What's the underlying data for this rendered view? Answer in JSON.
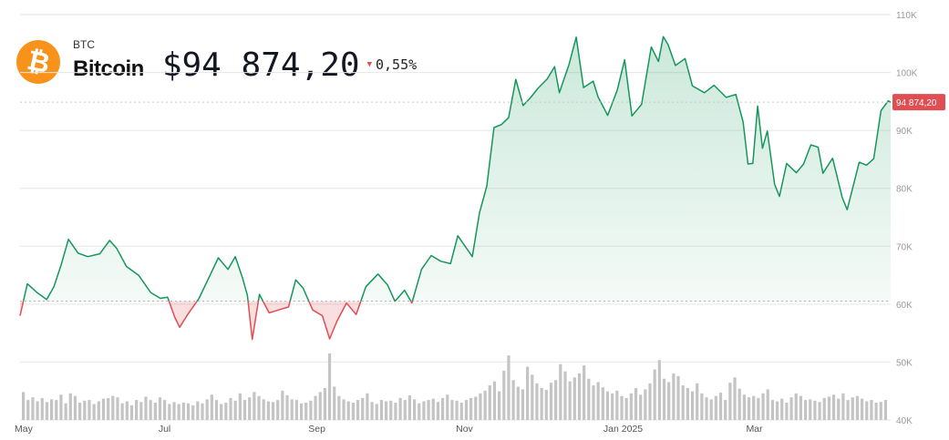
{
  "asset": {
    "ticker": "BTC",
    "name": "Bitcoin",
    "price_display": "$94 874,20",
    "change_display": "0,55%",
    "change_direction": "down",
    "icon": "bitcoin-icon",
    "icon_color": "#f7931a"
  },
  "colors": {
    "up_line": "#15965a",
    "up_fill": "#15965a",
    "down_line": "#e04d52",
    "down_fill": "#e04d52",
    "volume": "#c4c4c4",
    "grid": "#e6e6e6",
    "price_tag": "#e04d52"
  },
  "chart_data": {
    "type": "area",
    "title": "",
    "price_label": "94 874,20",
    "last_price": 94874.2,
    "baseline_price": 60500,
    "y_ticks": [
      "110K",
      "100K",
      "90K",
      "80K",
      "70K",
      "60K",
      "50K",
      "40K"
    ],
    "ylim": [
      40000,
      110000
    ],
    "x_tick_labels": [
      "May",
      "Jul",
      "Sep",
      "Nov",
      "Jan 2025",
      "Mar"
    ],
    "x_tick_dates": [
      "2024-05-01",
      "2024-07-01",
      "2024-09-01",
      "2024-11-01",
      "2025-01-01",
      "2025-03-01"
    ],
    "xlim": [
      "2024-05-01",
      "2025-04-26"
    ],
    "grid": true,
    "series": [
      {
        "price_points": [
          [
            "2024-05-01",
            58000
          ],
          [
            "2024-05-04",
            63500
          ],
          [
            "2024-05-08",
            62000
          ],
          [
            "2024-05-12",
            60800
          ],
          [
            "2024-05-15",
            63000
          ],
          [
            "2024-05-18",
            66800
          ],
          [
            "2024-05-21",
            71200
          ],
          [
            "2024-05-25",
            68800
          ],
          [
            "2024-05-29",
            68200
          ],
          [
            "2024-06-03",
            68700
          ],
          [
            "2024-06-07",
            71000
          ],
          [
            "2024-06-10",
            69600
          ],
          [
            "2024-06-14",
            66500
          ],
          [
            "2024-06-19",
            65000
          ],
          [
            "2024-06-24",
            62000
          ],
          [
            "2024-06-28",
            61000
          ],
          [
            "2024-07-01",
            61200
          ],
          [
            "2024-07-04",
            57700
          ],
          [
            "2024-07-06",
            56000
          ],
          [
            "2024-07-09",
            58000
          ],
          [
            "2024-07-14",
            61000
          ],
          [
            "2024-07-18",
            64500
          ],
          [
            "2024-07-22",
            68000
          ],
          [
            "2024-07-26",
            66000
          ],
          [
            "2024-07-29",
            68200
          ],
          [
            "2024-08-01",
            64500
          ],
          [
            "2024-08-03",
            61500
          ],
          [
            "2024-08-05",
            53900
          ],
          [
            "2024-08-08",
            61700
          ],
          [
            "2024-08-12",
            58500
          ],
          [
            "2024-08-16",
            59000
          ],
          [
            "2024-08-20",
            59500
          ],
          [
            "2024-08-23",
            64200
          ],
          [
            "2024-08-26",
            62800
          ],
          [
            "2024-08-30",
            59000
          ],
          [
            "2024-09-03",
            58000
          ],
          [
            "2024-09-06",
            54000
          ],
          [
            "2024-09-09",
            57000
          ],
          [
            "2024-09-13",
            60200
          ],
          [
            "2024-09-17",
            58200
          ],
          [
            "2024-09-21",
            63000
          ],
          [
            "2024-09-26",
            65200
          ],
          [
            "2024-09-30",
            63300
          ],
          [
            "2024-10-03",
            60500
          ],
          [
            "2024-10-07",
            62400
          ],
          [
            "2024-10-10",
            60200
          ],
          [
            "2024-10-14",
            66000
          ],
          [
            "2024-10-18",
            68400
          ],
          [
            "2024-10-22",
            67400
          ],
          [
            "2024-10-26",
            67000
          ],
          [
            "2024-10-29",
            71800
          ],
          [
            "2024-11-02",
            69400
          ],
          [
            "2024-11-04",
            68200
          ],
          [
            "2024-11-07",
            75800
          ],
          [
            "2024-11-10",
            80400
          ],
          [
            "2024-11-13",
            90500
          ],
          [
            "2024-11-16",
            91000
          ],
          [
            "2024-11-19",
            92200
          ],
          [
            "2024-11-22",
            98800
          ],
          [
            "2024-11-25",
            94300
          ],
          [
            "2024-11-28",
            95600
          ],
          [
            "2024-12-01",
            97200
          ],
          [
            "2024-12-05",
            98900
          ],
          [
            "2024-12-08",
            101000
          ],
          [
            "2024-12-10",
            96500
          ],
          [
            "2024-12-14",
            101400
          ],
          [
            "2024-12-17",
            106100
          ],
          [
            "2024-12-20",
            97400
          ],
          [
            "2024-12-24",
            98500
          ],
          [
            "2024-12-26",
            95800
          ],
          [
            "2024-12-30",
            92600
          ],
          [
            "2025-01-03",
            97000
          ],
          [
            "2025-01-06",
            102200
          ],
          [
            "2025-01-09",
            92500
          ],
          [
            "2025-01-13",
            94500
          ],
          [
            "2025-01-17",
            104400
          ],
          [
            "2025-01-20",
            101900
          ],
          [
            "2025-01-22",
            106200
          ],
          [
            "2025-01-24",
            104800
          ],
          [
            "2025-01-27",
            101200
          ],
          [
            "2025-01-31",
            102400
          ],
          [
            "2025-02-03",
            97700
          ],
          [
            "2025-02-08",
            96500
          ],
          [
            "2025-02-12",
            97800
          ],
          [
            "2025-02-17",
            95700
          ],
          [
            "2025-02-21",
            96200
          ],
          [
            "2025-02-24",
            91400
          ],
          [
            "2025-02-26",
            84200
          ],
          [
            "2025-02-28",
            84300
          ],
          [
            "2025-03-02",
            94200
          ],
          [
            "2025-03-04",
            86900
          ],
          [
            "2025-03-06",
            89900
          ],
          [
            "2025-03-09",
            80700
          ],
          [
            "2025-03-11",
            78600
          ],
          [
            "2025-03-14",
            84300
          ],
          [
            "2025-03-18",
            82700
          ],
          [
            "2025-03-21",
            84200
          ],
          [
            "2025-03-24",
            87500
          ],
          [
            "2025-03-27",
            87100
          ],
          [
            "2025-03-29",
            82600
          ],
          [
            "2025-04-02",
            85200
          ],
          [
            "2025-04-06",
            78400
          ],
          [
            "2025-04-08",
            76300
          ],
          [
            "2025-04-10",
            79600
          ],
          [
            "2025-04-13",
            84500
          ],
          [
            "2025-04-16",
            84000
          ],
          [
            "2025-04-19",
            85100
          ],
          [
            "2025-04-22",
            93400
          ],
          [
            "2025-04-25",
            95100
          ],
          [
            "2025-04-26",
            94874
          ]
        ],
        "volume_relative": [
          0.42,
          0.3,
          0.34,
          0.28,
          0.33,
          0.27,
          0.31,
          0.3,
          0.38,
          0.25,
          0.4,
          0.36,
          0.26,
          0.29,
          0.3,
          0.24,
          0.28,
          0.32,
          0.33,
          0.36,
          0.34,
          0.25,
          0.28,
          0.22,
          0.3,
          0.27,
          0.35,
          0.3,
          0.26,
          0.34,
          0.3,
          0.24,
          0.27,
          0.24,
          0.26,
          0.25,
          0.22,
          0.28,
          0.25,
          0.31,
          0.38,
          0.3,
          0.24,
          0.26,
          0.33,
          0.29,
          0.4,
          0.3,
          0.34,
          0.42,
          0.36,
          0.31,
          0.28,
          0.27,
          0.3,
          0.44,
          0.37,
          0.31,
          0.3,
          0.25,
          0.26,
          0.29,
          0.36,
          0.42,
          0.48,
          1.0,
          0.5,
          0.36,
          0.31,
          0.28,
          0.26,
          0.3,
          0.33,
          0.4,
          0.27,
          0.24,
          0.3,
          0.28,
          0.29,
          0.26,
          0.33,
          0.3,
          0.37,
          0.31,
          0.25,
          0.28,
          0.3,
          0.32,
          0.27,
          0.33,
          0.38,
          0.3,
          0.29,
          0.26,
          0.3,
          0.33,
          0.35,
          0.4,
          0.44,
          0.52,
          0.58,
          0.43,
          0.74,
          0.97,
          0.6,
          0.5,
          0.46,
          0.8,
          0.68,
          0.55,
          0.48,
          0.45,
          0.56,
          0.6,
          0.84,
          0.73,
          0.58,
          0.64,
          0.7,
          0.82,
          0.62,
          0.52,
          0.57,
          0.49,
          0.43,
          0.4,
          0.44,
          0.36,
          0.33,
          0.4,
          0.48,
          0.38,
          0.46,
          0.55,
          0.76,
          0.9,
          0.62,
          0.57,
          0.7,
          0.66,
          0.52,
          0.48,
          0.43,
          0.55,
          0.4,
          0.34,
          0.31,
          0.36,
          0.41,
          0.3,
          0.56,
          0.64,
          0.47,
          0.38,
          0.34,
          0.36,
          0.33,
          0.4,
          0.46,
          0.3,
          0.28,
          0.32,
          0.26,
          0.34,
          0.4,
          0.36,
          0.3,
          0.31,
          0.29,
          0.27,
          0.33,
          0.35,
          0.38,
          0.32,
          0.4,
          0.3,
          0.34,
          0.36,
          0.32,
          0.28,
          0.3,
          0.26,
          0.27,
          0.3
        ]
      }
    ]
  }
}
